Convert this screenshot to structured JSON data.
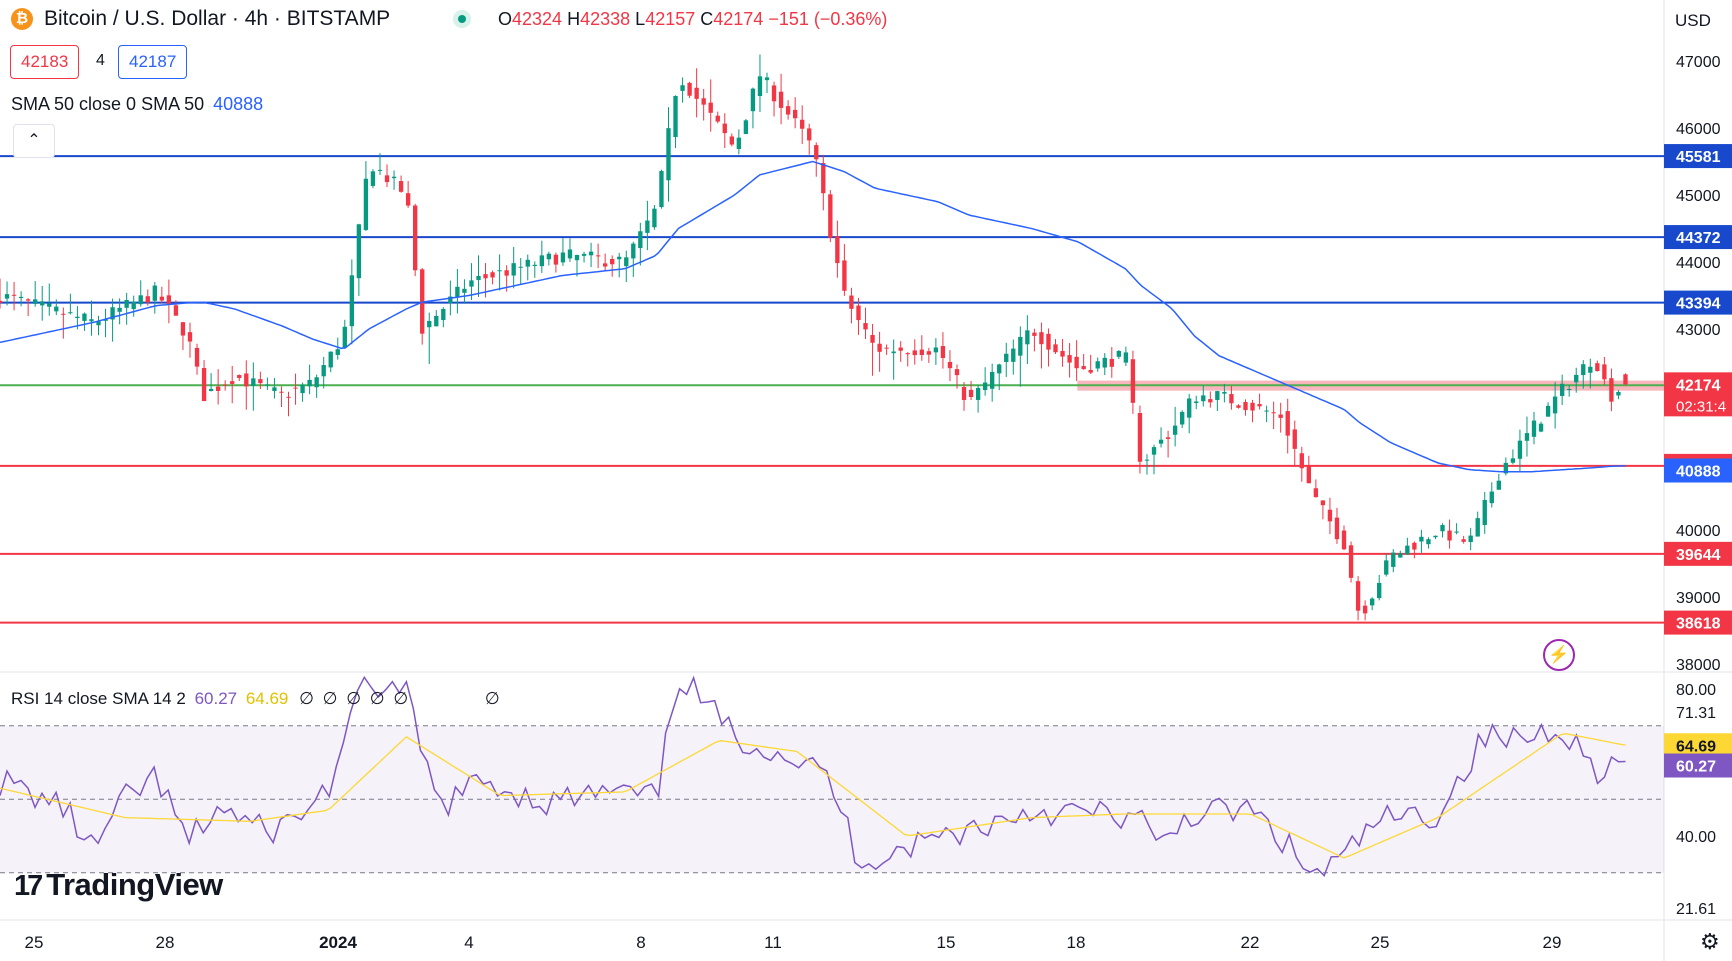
{
  "header": {
    "symbol_icon": "bitcoin-icon",
    "symbol_icon_glyph": "₿",
    "title": "Bitcoin / U.S. Dollar · 4h · BITSTAMP",
    "ohlc": [
      {
        "label": "O",
        "value": "42324"
      },
      {
        "label": "H",
        "value": "42338"
      },
      {
        "label": "L",
        "value": "42157"
      },
      {
        "label": "C",
        "value": "42174"
      }
    ],
    "change": "−151 (−0.36%)",
    "bid": "42183",
    "spread": "4",
    "ask": "42187",
    "sma_legend": "SMA 50 close 0 SMA 50",
    "sma_value": "40888",
    "currency": "USD"
  },
  "rsi_legend": {
    "label": "RSI 14 close SMA 14 2",
    "rsi": "60.27",
    "sma": "64.69",
    "na": [
      "∅",
      "∅",
      "∅",
      "∅",
      "∅",
      "∅"
    ]
  },
  "brand": {
    "name": "TradingView",
    "mark": "17"
  },
  "colors": {
    "up": "#089981",
    "down": "#f23645",
    "sma": "#2962ff",
    "rsi": "#7e57c2",
    "rsi_sma": "#fdd835",
    "support": "#f23645",
    "resistance": "#1848cc",
    "current": "#4caf50"
  },
  "chart_data": [
    {
      "type": "candlestick",
      "title": "Bitcoin / U.S. Dollar · 4h · BITSTAMP",
      "x_ticks": [
        "25",
        "28",
        "2024",
        "4",
        "8",
        "11",
        "15",
        "18",
        "22",
        "25",
        "29"
      ],
      "y_ticks": [
        "47000",
        "46000",
        "45000",
        "44000",
        "43000",
        "42000",
        "41000",
        "40000",
        "39000",
        "38000"
      ],
      "ylim": [
        37800,
        47600
      ],
      "horizontal_levels": [
        {
          "value": 45581,
          "label": "45581",
          "color": "#1848cc"
        },
        {
          "value": 44372,
          "label": "44372",
          "color": "#1848cc"
        },
        {
          "value": 43394,
          "label": "43394",
          "color": "#1848cc"
        },
        {
          "value": 42161,
          "label": "42161",
          "color": "#4caf50"
        },
        {
          "value": 40957,
          "label": "40957",
          "color": "#f23645"
        },
        {
          "value": 39644,
          "label": "39644",
          "color": "#f23645"
        },
        {
          "value": 38618,
          "label": "38618",
          "color": "#f23645"
        }
      ],
      "price_labels": [
        {
          "value": 42174,
          "label": "42174",
          "sublabel": "02:31:4",
          "color": "#f23645"
        },
        {
          "value": 40888,
          "label": "40888",
          "color": "#2962ff"
        }
      ],
      "highlight_zone": {
        "from_pct": 62.2,
        "to_pct": 96.5,
        "low": 42080,
        "high": 42230
      },
      "anchors": [
        {
          "t": 0.0,
          "c": 43500,
          "h": 600,
          "l": 500,
          "sma": 42800
        },
        {
          "t": 3.0,
          "c": 43100,
          "h": 500,
          "l": 700,
          "sma": 43100
        },
        {
          "t": 5.0,
          "c": 43550,
          "h": 400,
          "l": 500,
          "sma": 43350
        },
        {
          "t": 6.0,
          "c": 42900,
          "h": 500,
          "l": 600,
          "sma": 43390
        },
        {
          "t": 6.5,
          "c": 42000,
          "h": 400,
          "l": 500,
          "sma": 43400
        },
        {
          "t": 7.5,
          "c": 42300,
          "h": 500,
          "l": 700,
          "sma": 43300
        },
        {
          "t": 9.0,
          "c": 42000,
          "h": 400,
          "l": 500,
          "sma": 43050
        },
        {
          "t": 10.0,
          "c": 42200,
          "h": 400,
          "l": 400,
          "sma": 42850
        },
        {
          "t": 11.0,
          "c": 42900,
          "h": 400,
          "l": 400,
          "sma": 42700
        },
        {
          "t": 11.8,
          "c": 45500,
          "h": 500,
          "l": 700,
          "sma": 43000
        },
        {
          "t": 13.0,
          "c": 45000,
          "h": 300,
          "l": 300,
          "sma": 43300
        },
        {
          "t": 13.5,
          "c": 43000,
          "h": 400,
          "l": 1000,
          "sma": 43400
        },
        {
          "t": 15.0,
          "c": 43700,
          "h": 600,
          "l": 500,
          "sma": 43500
        },
        {
          "t": 18.0,
          "c": 44100,
          "h": 400,
          "l": 500,
          "sma": 43800
        },
        {
          "t": 20.0,
          "c": 44000,
          "h": 400,
          "l": 500,
          "sma": 43900
        },
        {
          "t": 21.0,
          "c": 44800,
          "h": 600,
          "l": 500,
          "sma": 44100
        },
        {
          "t": 21.7,
          "c": 46800,
          "h": 600,
          "l": 600,
          "sma": 44500
        },
        {
          "t": 23.5,
          "c": 45700,
          "h": 600,
          "l": 700,
          "sma": 45000
        },
        {
          "t": 24.3,
          "c": 46800,
          "h": 600,
          "l": 500,
          "sma": 45300
        },
        {
          "t": 26.0,
          "c": 45700,
          "h": 400,
          "l": 500,
          "sma": 45500
        },
        {
          "t": 27.0,
          "c": 43500,
          "h": 500,
          "l": 600,
          "sma": 45350
        },
        {
          "t": 28.0,
          "c": 42700,
          "h": 500,
          "l": 900,
          "sma": 45100
        },
        {
          "t": 30.0,
          "c": 42700,
          "h": 400,
          "l": 400,
          "sma": 44900
        },
        {
          "t": 31.0,
          "c": 41900,
          "h": 400,
          "l": 300,
          "sma": 44700
        },
        {
          "t": 33.0,
          "c": 43000,
          "h": 400,
          "l": 900,
          "sma": 44500
        },
        {
          "t": 34.5,
          "c": 42400,
          "h": 500,
          "l": 300,
          "sma": 44300
        },
        {
          "t": 36.0,
          "c": 42600,
          "h": 300,
          "l": 300,
          "sma": 43900
        },
        {
          "t": 36.5,
          "c": 41000,
          "h": 300,
          "l": 400,
          "sma": 43650
        },
        {
          "t": 37.5,
          "c": 41500,
          "h": 500,
          "l": 700,
          "sma": 43300
        },
        {
          "t": 38.2,
          "c": 42000,
          "h": 300,
          "l": 300,
          "sma": 42900
        },
        {
          "t": 39.0,
          "c": 42000,
          "h": 300,
          "l": 300,
          "sma": 42600
        },
        {
          "t": 41.0,
          "c": 41700,
          "h": 300,
          "l": 500,
          "sma": 42200
        },
        {
          "t": 42.0,
          "c": 40500,
          "h": 400,
          "l": 400,
          "sma": 42000
        },
        {
          "t": 43.0,
          "c": 39800,
          "h": 300,
          "l": 300,
          "sma": 41800
        },
        {
          "t": 43.5,
          "c": 38700,
          "h": 300,
          "l": 300,
          "sma": 41600
        },
        {
          "t": 44.5,
          "c": 39600,
          "h": 300,
          "l": 300,
          "sma": 41300
        },
        {
          "t": 46.0,
          "c": 40000,
          "h": 300,
          "l": 300,
          "sma": 41000
        },
        {
          "t": 47.0,
          "c": 39800,
          "h": 300,
          "l": 300,
          "sma": 40900
        },
        {
          "t": 48.0,
          "c": 40900,
          "h": 300,
          "l": 300,
          "sma": 40870
        },
        {
          "t": 49.0,
          "c": 41500,
          "h": 600,
          "l": 500,
          "sma": 40870
        },
        {
          "t": 50.0,
          "c": 42100,
          "h": 300,
          "l": 400,
          "sma": 40900
        },
        {
          "t": 51.0,
          "c": 42600,
          "h": 300,
          "l": 400,
          "sma": 40930
        },
        {
          "t": 51.5,
          "c": 42000,
          "h": 300,
          "l": 300,
          "sma": 40950
        },
        {
          "t": 52.0,
          "c": 42174,
          "h": 164,
          "l": 17,
          "sma": 40960
        }
      ],
      "anchor_t_max": 52,
      "xlim_frac": [
        0.0,
        0.9385
      ]
    },
    {
      "type": "line",
      "title": "RSI 14 close SMA 14 2",
      "y_ticks": [
        "80.00",
        "40.00"
      ],
      "y_labels": [
        "71.31",
        "21.61"
      ],
      "ylim": [
        18,
        86
      ],
      "bands": [
        70,
        50,
        30
      ],
      "series": [
        {
          "name": "RSI",
          "value": "60.27",
          "anchors": [
            {
              "t": 0.0,
              "v": 55
            },
            {
              "t": 2.0,
              "v": 48
            },
            {
              "t": 3.0,
              "v": 36
            },
            {
              "t": 4.0,
              "v": 50
            },
            {
              "t": 5.0,
              "v": 56
            },
            {
              "t": 6.0,
              "v": 38
            },
            {
              "t": 7.0,
              "v": 48
            },
            {
              "t": 8.5,
              "v": 41
            },
            {
              "t": 9.5,
              "v": 45
            },
            {
              "t": 10.5,
              "v": 53
            },
            {
              "t": 11.7,
              "v": 82
            },
            {
              "t": 13.0,
              "v": 78
            },
            {
              "t": 14.0,
              "v": 48
            },
            {
              "t": 15.5,
              "v": 55
            },
            {
              "t": 17.5,
              "v": 49
            },
            {
              "t": 19.5,
              "v": 52
            },
            {
              "t": 21.0,
              "v": 50
            },
            {
              "t": 21.7,
              "v": 84
            },
            {
              "t": 23.5,
              "v": 67
            },
            {
              "t": 25.0,
              "v": 63
            },
            {
              "t": 26.5,
              "v": 56
            },
            {
              "t": 27.5,
              "v": 33
            },
            {
              "t": 29.0,
              "v": 37
            },
            {
              "t": 30.0,
              "v": 40
            },
            {
              "t": 31.5,
              "v": 43
            },
            {
              "t": 33.0,
              "v": 47
            },
            {
              "t": 35.0,
              "v": 46
            },
            {
              "t": 36.5,
              "v": 45
            },
            {
              "t": 37.0,
              "v": 36
            },
            {
              "t": 38.0,
              "v": 46
            },
            {
              "t": 40.0,
              "v": 47
            },
            {
              "t": 41.0,
              "v": 39
            },
            {
              "t": 42.0,
              "v": 29
            },
            {
              "t": 43.0,
              "v": 34
            },
            {
              "t": 44.0,
              "v": 44
            },
            {
              "t": 46.0,
              "v": 46
            },
            {
              "t": 47.5,
              "v": 67
            },
            {
              "t": 48.5,
              "v": 66
            },
            {
              "t": 50.0,
              "v": 70
            },
            {
              "t": 51.0,
              "v": 58
            },
            {
              "t": 52.0,
              "v": 60.27
            }
          ]
        },
        {
          "name": "SMA",
          "value": "64.69",
          "anchors": [
            {
              "t": 0.0,
              "v": 53
            },
            {
              "t": 4.0,
              "v": 45
            },
            {
              "t": 8.0,
              "v": 44
            },
            {
              "t": 10.5,
              "v": 47
            },
            {
              "t": 13.0,
              "v": 67
            },
            {
              "t": 16.0,
              "v": 51
            },
            {
              "t": 20.0,
              "v": 52
            },
            {
              "t": 23.0,
              "v": 66
            },
            {
              "t": 25.5,
              "v": 63
            },
            {
              "t": 29.0,
              "v": 40
            },
            {
              "t": 33.0,
              "v": 45
            },
            {
              "t": 36.0,
              "v": 46
            },
            {
              "t": 40.0,
              "v": 46
            },
            {
              "t": 43.0,
              "v": 34
            },
            {
              "t": 46.0,
              "v": 45
            },
            {
              "t": 50.0,
              "v": 68
            },
            {
              "t": 52.0,
              "v": 64.69
            }
          ]
        }
      ]
    }
  ]
}
